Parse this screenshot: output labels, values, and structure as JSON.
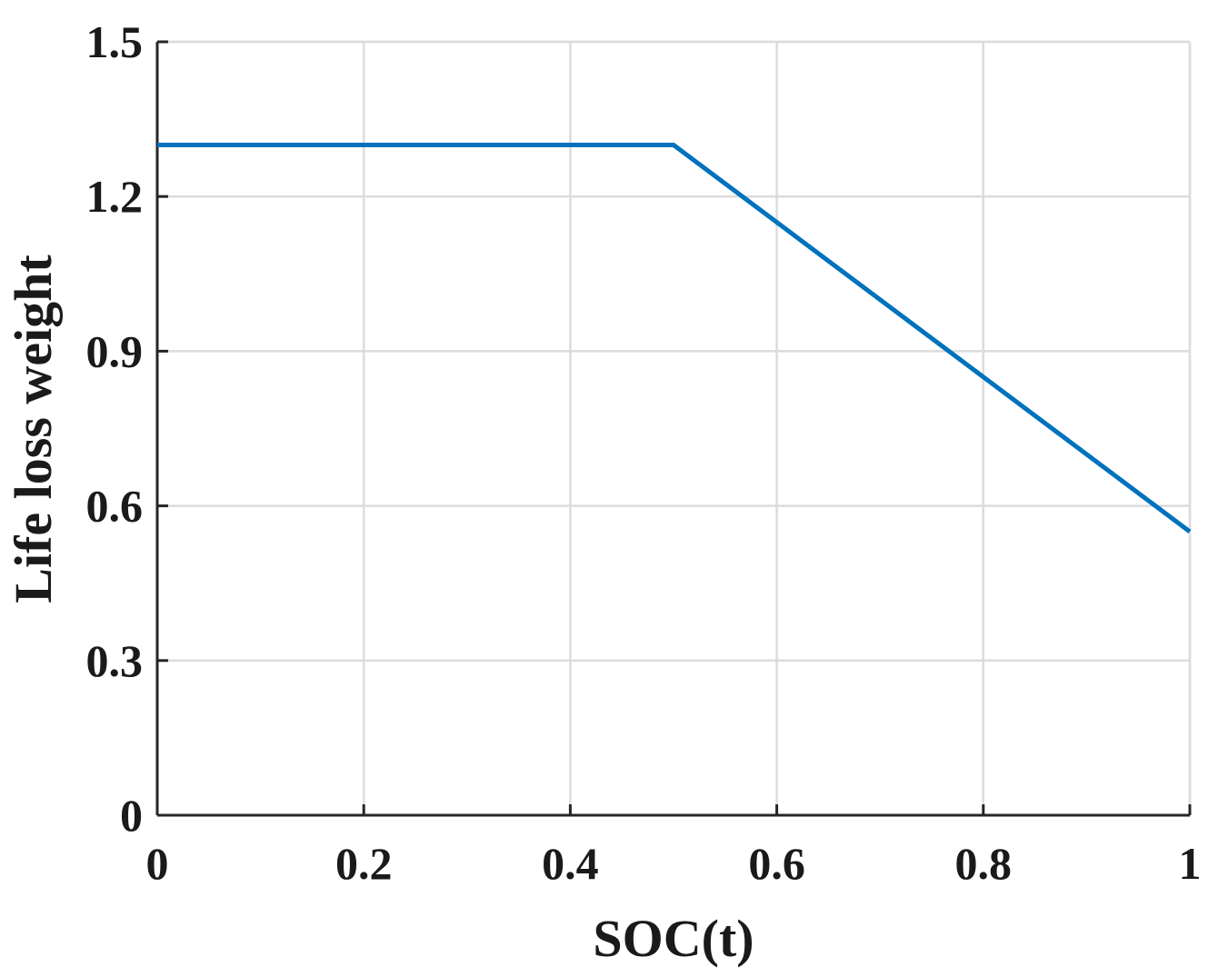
{
  "chart_data": {
    "type": "line",
    "xlabel": "SOC(t)",
    "ylabel": "Life loss weight",
    "xlim": [
      0,
      1
    ],
    "ylim": [
      0,
      1.5
    ],
    "x_ticks": [
      0,
      0.2,
      0.4,
      0.6,
      0.8,
      1
    ],
    "x_tick_labels": [
      "0",
      "0.2",
      "0.4",
      "0.6",
      "0.8",
      "1"
    ],
    "y_ticks": [
      0,
      0.3,
      0.6,
      0.9,
      1.2,
      1.5
    ],
    "y_tick_labels": [
      "0",
      "0.3",
      "0.6",
      "0.9",
      "1.2",
      "1.5"
    ],
    "grid": true,
    "series": [
      {
        "x": [
          0,
          0.5,
          1
        ],
        "y": [
          1.3,
          1.3,
          0.55
        ],
        "color": "#0072bd"
      }
    ]
  }
}
